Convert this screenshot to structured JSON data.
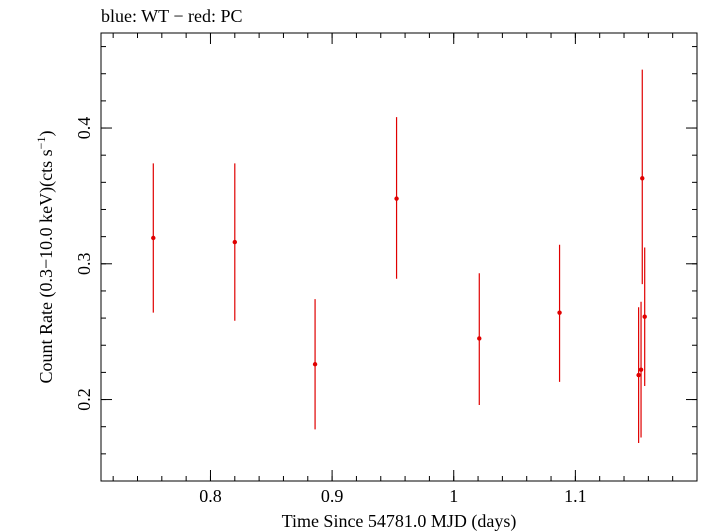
{
  "chart_data": {
    "type": "scatter",
    "title": "blue: WT − red: PC",
    "xlabel": "Time Since 54781.0 MJD (days)",
    "ylabel_main": "Count Rate (0.3−10.0 keV)(cts s",
    "ylabel_sup": "−1",
    "ylabel_end": ")",
    "xlim": [
      0.71,
      1.2
    ],
    "ylim": [
      0.14,
      0.47
    ],
    "x_ticks": [
      {
        "value": 0.8,
        "label": "0.8"
      },
      {
        "value": 0.9,
        "label": "0.9"
      },
      {
        "value": 1.0,
        "label": "1"
      },
      {
        "value": 1.1,
        "label": "1.1"
      }
    ],
    "y_ticks": [
      {
        "value": 0.2,
        "label": "0.2"
      },
      {
        "value": 0.3,
        "label": "0.3"
      },
      {
        "value": 0.4,
        "label": "0.4"
      }
    ],
    "x_minor_step": 0.02,
    "y_minor_step": 0.02,
    "series": [
      {
        "name": "PC",
        "color": "#e00000",
        "points": [
          {
            "x": 0.753,
            "y": 0.319,
            "ylo": 0.264,
            "yhi": 0.374
          },
          {
            "x": 0.82,
            "y": 0.316,
            "ylo": 0.258,
            "yhi": 0.374
          },
          {
            "x": 0.886,
            "y": 0.226,
            "ylo": 0.178,
            "yhi": 0.274
          },
          {
            "x": 0.953,
            "y": 0.348,
            "ylo": 0.289,
            "yhi": 0.408
          },
          {
            "x": 1.021,
            "y": 0.245,
            "ylo": 0.196,
            "yhi": 0.293
          },
          {
            "x": 1.087,
            "y": 0.264,
            "ylo": 0.213,
            "yhi": 0.314
          },
          {
            "x": 1.152,
            "y": 0.218,
            "ylo": 0.168,
            "yhi": 0.268
          },
          {
            "x": 1.154,
            "y": 0.222,
            "ylo": 0.172,
            "yhi": 0.272
          },
          {
            "x": 1.155,
            "y": 0.363,
            "ylo": 0.285,
            "yhi": 0.443
          },
          {
            "x": 1.157,
            "y": 0.261,
            "ylo": 0.21,
            "yhi": 0.312
          }
        ]
      }
    ]
  }
}
